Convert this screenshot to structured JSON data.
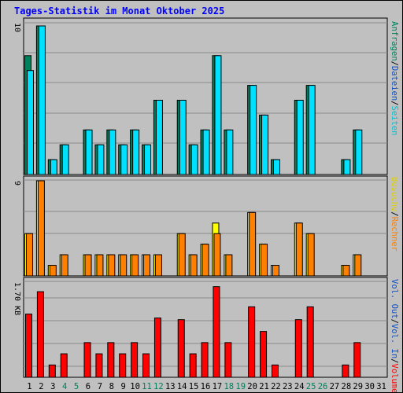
{
  "title": "Tages-Statistik im Monat Oktober 2025",
  "colors": {
    "title": "#0000ff",
    "background": "#c0c0c0",
    "grid": "#8a8a8a",
    "anfragen": "#00805c",
    "dateien": "#00e0ff",
    "seiten": "#00c0d0",
    "besuche": "#ffff00",
    "rechner": "#ff8000",
    "vol_out": "#1050c0",
    "vol_in": "#1050c0",
    "volumen": "#ff0000",
    "weekend_label": "#00805c",
    "day_label": "#000000"
  },
  "chart_data": [
    {
      "type": "bar",
      "panel": "top",
      "ymax_label": "10",
      "ylim": [
        0,
        10
      ],
      "grid": true,
      "legend_placement": "right-vertical",
      "x": [
        "1",
        "2",
        "3",
        "4",
        "5",
        "6",
        "7",
        "8",
        "9",
        "10",
        "11",
        "12",
        "13",
        "14",
        "15",
        "16",
        "17",
        "18",
        "19",
        "20",
        "21",
        "22",
        "23",
        "24",
        "25",
        "26",
        "27",
        "28",
        "29",
        "30",
        "31"
      ],
      "weekend_days": [
        "4",
        "5",
        "11",
        "12",
        "18",
        "19",
        "25",
        "26"
      ],
      "legend": [
        {
          "name": "Anfragen",
          "color": "#00805c"
        },
        {
          "name": "/",
          "color": "#000000"
        },
        {
          "name": "Dateien",
          "color": "#1050c0"
        },
        {
          "name": "/",
          "color": "#000000"
        },
        {
          "name": "Seiten",
          "color": "#00c0d0"
        }
      ],
      "series": [
        {
          "name": "Anfragen",
          "color": "#00805c",
          "values": [
            8,
            10,
            1,
            2,
            0,
            3,
            2,
            3,
            2,
            3,
            2,
            5,
            0,
            5,
            2,
            3,
            8,
            3,
            0,
            6,
            4,
            1,
            0,
            5,
            6,
            0,
            0,
            1,
            3,
            0,
            0
          ]
        },
        {
          "name": "Dateien",
          "color": "#00e0ff",
          "values": [
            7,
            10,
            1,
            2,
            0,
            3,
            2,
            3,
            2,
            3,
            2,
            5,
            0,
            5,
            2,
            3,
            8,
            3,
            0,
            6,
            4,
            1,
            0,
            5,
            6,
            0,
            0,
            1,
            3,
            0,
            0
          ]
        }
      ]
    },
    {
      "type": "bar",
      "panel": "middle",
      "ymax_label": "9",
      "ylim": [
        0,
        9
      ],
      "grid": true,
      "legend_placement": "right-vertical",
      "legend": [
        {
          "name": "Besuche",
          "color": "#e0d000"
        },
        {
          "name": "/",
          "color": "#000000"
        },
        {
          "name": "Rechner",
          "color": "#ff8000"
        }
      ],
      "series": [
        {
          "name": "Besuche",
          "color": "#ffff00",
          "values": [
            4,
            9,
            1,
            2,
            0,
            2,
            2,
            2,
            2,
            2,
            2,
            2,
            0,
            4,
            2,
            3,
            5,
            2,
            0,
            6,
            3,
            1,
            0,
            5,
            4,
            0,
            0,
            1,
            2,
            0,
            0
          ]
        },
        {
          "name": "Rechner",
          "color": "#ff8000",
          "values": [
            4,
            9,
            1,
            2,
            0,
            2,
            2,
            2,
            2,
            2,
            2,
            2,
            0,
            4,
            2,
            3,
            4,
            2,
            0,
            6,
            3,
            1,
            0,
            5,
            4,
            0,
            0,
            1,
            2,
            0,
            0
          ]
        }
      ]
    },
    {
      "type": "bar",
      "panel": "bottom",
      "ymax_label": "1.70 KB",
      "ylim": [
        0,
        1.7
      ],
      "grid": true,
      "legend_placement": "right-vertical",
      "legend": [
        {
          "name": "Vol. Out",
          "color": "#1050c0"
        },
        {
          "name": "/",
          "color": "#000000"
        },
        {
          "name": "Vol. In",
          "color": "#1050c0"
        },
        {
          "name": "/",
          "color": "#000000"
        },
        {
          "name": "Volumen",
          "color": "#ff0000"
        }
      ],
      "series": [
        {
          "name": "Volumen",
          "color": "#ff0000",
          "values": [
            1.13,
            1.53,
            0.22,
            0.42,
            0,
            0.62,
            0.42,
            0.62,
            0.42,
            0.62,
            0.42,
            1.06,
            0,
            1.03,
            0.42,
            0.62,
            1.62,
            0.62,
            0,
            1.26,
            0.82,
            0.22,
            0,
            1.03,
            1.26,
            0,
            0,
            0.22,
            0.62,
            0,
            0
          ]
        }
      ]
    }
  ]
}
